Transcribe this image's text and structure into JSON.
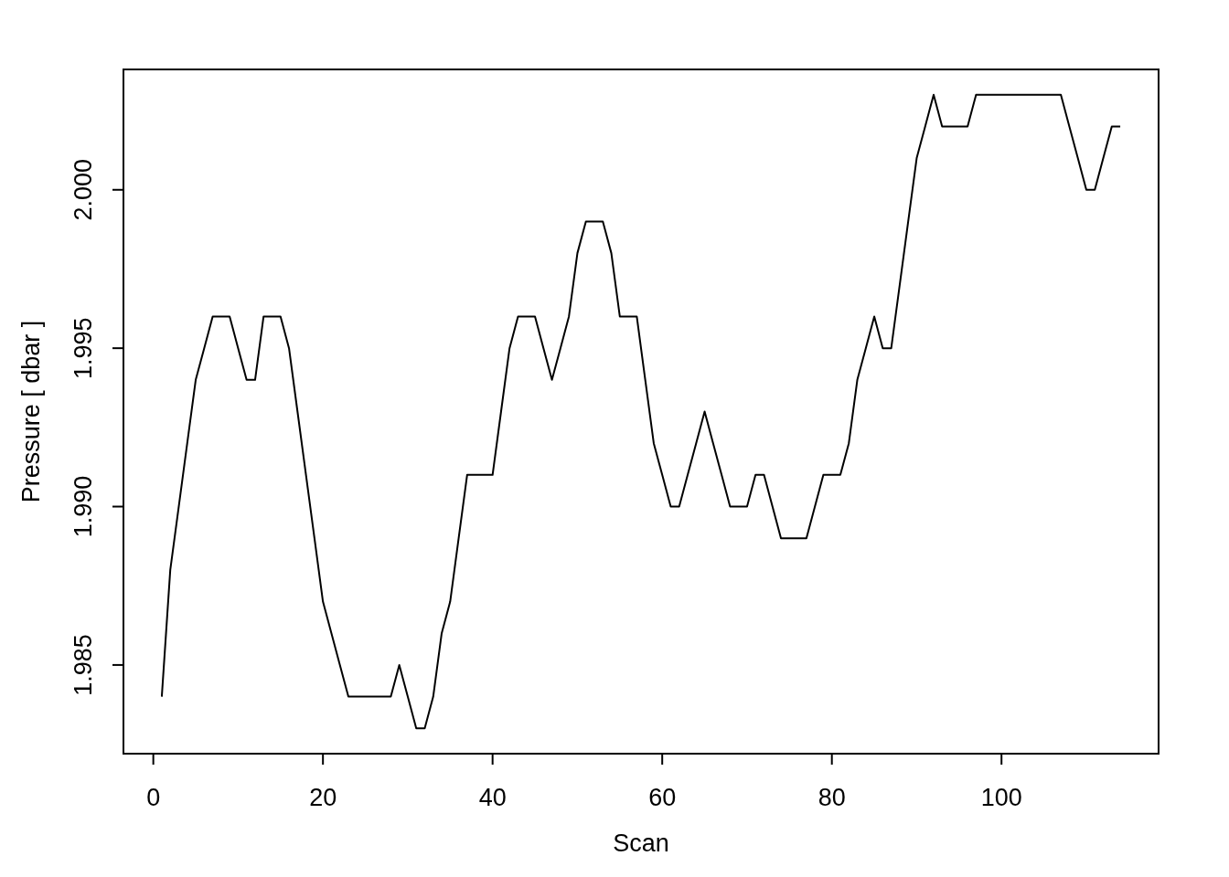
{
  "chart_data": {
    "type": "line",
    "xlabel": "Scan",
    "ylabel": "Pressure [ dbar ]",
    "x": [
      1,
      2,
      3,
      4,
      5,
      6,
      7,
      8,
      9,
      10,
      11,
      12,
      13,
      14,
      15,
      16,
      17,
      18,
      19,
      20,
      21,
      22,
      23,
      24,
      25,
      26,
      27,
      28,
      29,
      30,
      31,
      32,
      33,
      34,
      35,
      36,
      37,
      38,
      39,
      40,
      41,
      42,
      43,
      44,
      45,
      46,
      47,
      48,
      49,
      50,
      51,
      52,
      53,
      54,
      55,
      56,
      57,
      58,
      59,
      60,
      61,
      62,
      63,
      64,
      65,
      66,
      67,
      68,
      69,
      70,
      71,
      72,
      73,
      74,
      75,
      76,
      77,
      78,
      79,
      80,
      81,
      82,
      83,
      84,
      85,
      86,
      87,
      88,
      89,
      90,
      91,
      92,
      93,
      94,
      95,
      96,
      97,
      98,
      99,
      100,
      101,
      102,
      103,
      104,
      105,
      106,
      107,
      108,
      109,
      110,
      111,
      112,
      113,
      114
    ],
    "series": [
      {
        "color": "#000000",
        "values": [
          1.984,
          1.988,
          1.99,
          1.992,
          1.994,
          1.995,
          1.996,
          1.996,
          1.996,
          1.995,
          1.994,
          1.994,
          1.996,
          1.996,
          1.996,
          1.995,
          1.993,
          1.991,
          1.989,
          1.987,
          1.986,
          1.985,
          1.984,
          1.984,
          1.984,
          1.984,
          1.984,
          1.984,
          1.985,
          1.984,
          1.983,
          1.983,
          1.984,
          1.986,
          1.987,
          1.989,
          1.991,
          1.991,
          1.991,
          1.991,
          1.993,
          1.995,
          1.996,
          1.996,
          1.996,
          1.995,
          1.994,
          1.995,
          1.996,
          1.998,
          1.999,
          1.999,
          1.999,
          1.998,
          1.996,
          1.996,
          1.996,
          1.994,
          1.992,
          1.991,
          1.99,
          1.99,
          1.991,
          1.992,
          1.993,
          1.992,
          1.991,
          1.99,
          1.99,
          1.99,
          1.991,
          1.991,
          1.99,
          1.989,
          1.989,
          1.989,
          1.989,
          1.99,
          1.991,
          1.991,
          1.991,
          1.992,
          1.994,
          1.995,
          1.996,
          1.995,
          1.995,
          1.997,
          1.999,
          2.001,
          2.002,
          2.003,
          2.002,
          2.002,
          2.002,
          2.002,
          2.003,
          2.003,
          2.003,
          2.003,
          2.003,
          2.003,
          2.003,
          2.003,
          2.003,
          2.003,
          2.003,
          2.002,
          2.001,
          2.0,
          2.0,
          2.001,
          2.002,
          2.002
        ]
      }
    ],
    "xlim": [
      -3.52,
      118.52
    ],
    "ylim": [
      1.9822,
      2.0038
    ],
    "xticks": [
      0,
      20,
      40,
      60,
      80,
      100
    ],
    "yticks": [
      {
        "value": 1.985,
        "label": "1.985"
      },
      {
        "value": 1.99,
        "label": "1.990"
      },
      {
        "value": 1.995,
        "label": "1.995"
      },
      {
        "value": 2,
        "label": "2.000"
      }
    ],
    "marker": "none",
    "line_style": "solid"
  }
}
